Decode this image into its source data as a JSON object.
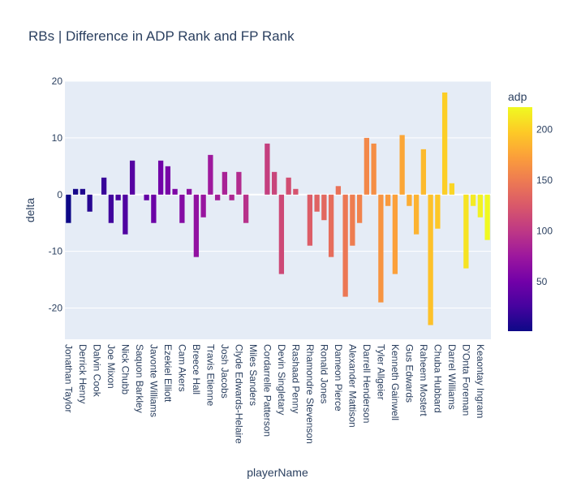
{
  "chart_data": {
    "type": "bar",
    "title": "RBs | Difference in ADP Rank and FP Rank",
    "xlabel": "playerName",
    "ylabel": "delta",
    "ylim": [
      -25.5,
      20
    ],
    "yticks": [
      -20,
      -10,
      0,
      10,
      20
    ],
    "grid": true,
    "colorbar": {
      "title": "adp",
      "range": [
        1,
        222
      ],
      "ticks": [
        50,
        100,
        150,
        200
      ],
      "colorscale": "plasma"
    },
    "x_tick_labels": [
      "Jonathan Taylor",
      "Derrick Henry",
      "Dalvin Cook",
      "Joe Mixon",
      "Nick Chubb",
      "Saquon Barkley",
      "Javonte Williams",
      "Ezekiel Elliott",
      "Cam Akers",
      "Breece Hall",
      "Travis Etienne",
      "Josh Jacobs",
      "Clyde Edwards-Helaire",
      "Miles Sanders",
      "Cordarrelle Patterson",
      "Devin Singletary",
      "Rashaad Penny",
      "Rhamondre Stevenson",
      "Ronald Jones",
      "Dameon Pierce",
      "Alexander Mattison",
      "Darrell Henderson",
      "Tyler Allgeier",
      "Kenneth Gainwell",
      "Gus Edwards",
      "Raheem Mostert",
      "Chuba Hubbard",
      "Darrel Williams",
      "D'Onta Foreman",
      "Keaontay Ingram"
    ],
    "values": [
      -5,
      1,
      1,
      -3,
      0,
      3,
      -5,
      -1,
      -7,
      6,
      0,
      -1,
      -5,
      6,
      5,
      1,
      -5,
      1,
      -11,
      -4,
      7,
      -1,
      4,
      -1,
      4,
      -5,
      0,
      0,
      9,
      4,
      -14,
      3,
      1,
      0,
      -9,
      -3,
      -4.5,
      -11,
      1.5,
      -18,
      -9,
      -5,
      10,
      9,
      -19,
      -2,
      -14,
      10.5,
      -2,
      -7,
      8,
      -23,
      -6,
      18,
      2,
      0,
      -13,
      -2,
      -4,
      -8
    ]
  }
}
